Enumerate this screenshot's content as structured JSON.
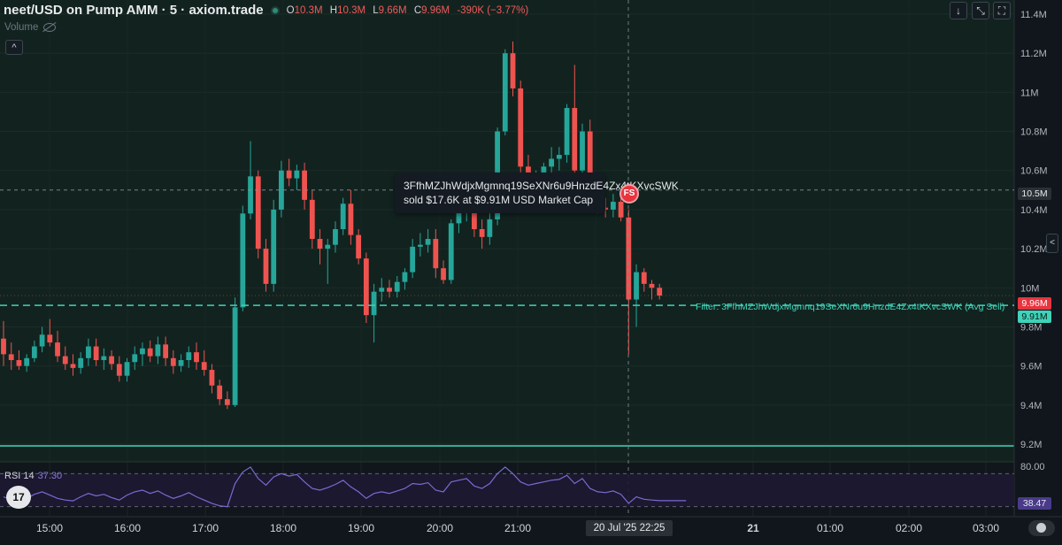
{
  "header": {
    "title": "neet/USD on Pump AMM · 5 · axiom.trade",
    "ohlc": [
      {
        "key": "O",
        "value": "10.3M"
      },
      {
        "key": "H",
        "value": "10.3M"
      },
      {
        "key": "L",
        "value": "9.66M"
      },
      {
        "key": "C",
        "value": "9.96M"
      }
    ],
    "change": "-390K (−3.77%)",
    "volume_label": "Volume",
    "collapse_icon": "chevron-up-icon",
    "buttons": [
      {
        "name": "arrow-down-icon",
        "glyph": "↓"
      },
      {
        "name": "collapse-arrows-icon",
        "glyph": "⤡"
      },
      {
        "name": "fullscreen-icon",
        "glyph": "⛶"
      }
    ]
  },
  "tooltip": {
    "line1": "3FfhMZJhWdjxMgmnq19SeXNr6u9HnzdE4Zx4tKXvcSWK",
    "line2": "sold $17.6K at $9.91M USD Market Cap"
  },
  "marker_badge": "FS",
  "filter_label": "Filter: 3FfhMZJhWdjxMgmnq19SeXNr6u9HnzdE4Zx4tKXvcSWK (Avg Sell)",
  "price_tags": {
    "crosshair": "10.5M",
    "last": "9.96M",
    "avg_sell": "9.91M",
    "rsi_value": "38.47"
  },
  "rsi": {
    "label": "RSI 14",
    "value": "37.30",
    "axis_top": "80.00"
  },
  "footer": {
    "date_tag": "20 Jul '25   22:25",
    "logo_text": "17"
  },
  "colors": {
    "up": "#26a69a",
    "down": "#ef5350",
    "avg_sell_line": "#3fd3b8",
    "rsi_line": "#7b6ad0",
    "background": "#10161b"
  },
  "chart_data": {
    "type": "candlestick",
    "title": "neet/USD on Pump AMM · 5 · axiom.trade",
    "yunit": "USD market cap (M)",
    "ylim": [
      9.2,
      11.4
    ],
    "y_ticks": [
      "11.4M",
      "11.2M",
      "11M",
      "10.8M",
      "10.6M",
      "10.4M",
      "10.2M",
      "10M",
      "9.8M",
      "9.6M",
      "9.4M",
      "9.2M"
    ],
    "x_ticks": [
      "15:00",
      "16:00",
      "17:00",
      "18:00",
      "19:00",
      "20:00",
      "21:00",
      "22:00",
      "21",
      "01:00",
      "02:00",
      "03:00"
    ],
    "crosshair_time": "22:25",
    "crosshair_value": 10.5,
    "avg_sell_value": 9.91,
    "last_close": 9.96,
    "candles": [
      {
        "o": 9.74,
        "h": 9.83,
        "l": 9.6,
        "c": 9.66
      },
      {
        "o": 9.66,
        "h": 9.72,
        "l": 9.58,
        "c": 9.63
      },
      {
        "o": 9.63,
        "h": 9.68,
        "l": 9.58,
        "c": 9.6
      },
      {
        "o": 9.6,
        "h": 9.66,
        "l": 9.57,
        "c": 9.64
      },
      {
        "o": 9.64,
        "h": 9.73,
        "l": 9.62,
        "c": 9.7
      },
      {
        "o": 9.7,
        "h": 9.8,
        "l": 9.67,
        "c": 9.76
      },
      {
        "o": 9.76,
        "h": 9.84,
        "l": 9.7,
        "c": 9.72
      },
      {
        "o": 9.72,
        "h": 9.78,
        "l": 9.62,
        "c": 9.65
      },
      {
        "o": 9.65,
        "h": 9.7,
        "l": 9.58,
        "c": 9.61
      },
      {
        "o": 9.61,
        "h": 9.66,
        "l": 9.55,
        "c": 9.59
      },
      {
        "o": 9.59,
        "h": 9.67,
        "l": 9.56,
        "c": 9.64
      },
      {
        "o": 9.64,
        "h": 9.74,
        "l": 9.6,
        "c": 9.7
      },
      {
        "o": 9.7,
        "h": 9.74,
        "l": 9.6,
        "c": 9.63
      },
      {
        "o": 9.63,
        "h": 9.69,
        "l": 9.58,
        "c": 9.65
      },
      {
        "o": 9.65,
        "h": 9.68,
        "l": 9.58,
        "c": 9.61
      },
      {
        "o": 9.61,
        "h": 9.65,
        "l": 9.52,
        "c": 9.55
      },
      {
        "o": 9.55,
        "h": 9.64,
        "l": 9.52,
        "c": 9.62
      },
      {
        "o": 9.62,
        "h": 9.7,
        "l": 9.58,
        "c": 9.66
      },
      {
        "o": 9.66,
        "h": 9.72,
        "l": 9.6,
        "c": 9.69
      },
      {
        "o": 9.69,
        "h": 9.73,
        "l": 9.62,
        "c": 9.65
      },
      {
        "o": 9.65,
        "h": 9.75,
        "l": 9.61,
        "c": 9.71
      },
      {
        "o": 9.71,
        "h": 9.75,
        "l": 9.6,
        "c": 9.64
      },
      {
        "o": 9.64,
        "h": 9.68,
        "l": 9.56,
        "c": 9.6
      },
      {
        "o": 9.6,
        "h": 9.66,
        "l": 9.57,
        "c": 9.63
      },
      {
        "o": 9.63,
        "h": 9.7,
        "l": 9.59,
        "c": 9.67
      },
      {
        "o": 9.67,
        "h": 9.72,
        "l": 9.58,
        "c": 9.62
      },
      {
        "o": 9.62,
        "h": 9.68,
        "l": 9.55,
        "c": 9.58
      },
      {
        "o": 9.58,
        "h": 9.61,
        "l": 9.46,
        "c": 9.5
      },
      {
        "o": 9.5,
        "h": 9.53,
        "l": 9.4,
        "c": 9.43
      },
      {
        "o": 9.43,
        "h": 9.47,
        "l": 9.38,
        "c": 9.4
      },
      {
        "o": 9.4,
        "h": 9.95,
        "l": 9.39,
        "c": 9.9
      },
      {
        "o": 9.9,
        "h": 10.42,
        "l": 9.88,
        "c": 10.38
      },
      {
        "o": 10.38,
        "h": 10.75,
        "l": 10.35,
        "c": 10.57
      },
      {
        "o": 10.57,
        "h": 10.6,
        "l": 10.15,
        "c": 10.2
      },
      {
        "o": 10.2,
        "h": 10.25,
        "l": 9.98,
        "c": 10.02
      },
      {
        "o": 10.02,
        "h": 10.45,
        "l": 9.98,
        "c": 10.4
      },
      {
        "o": 10.4,
        "h": 10.65,
        "l": 10.36,
        "c": 10.6
      },
      {
        "o": 10.6,
        "h": 10.66,
        "l": 10.52,
        "c": 10.56
      },
      {
        "o": 10.56,
        "h": 10.63,
        "l": 10.5,
        "c": 10.6
      },
      {
        "o": 10.6,
        "h": 10.64,
        "l": 10.4,
        "c": 10.45
      },
      {
        "o": 10.45,
        "h": 10.5,
        "l": 10.2,
        "c": 10.25
      },
      {
        "o": 10.25,
        "h": 10.3,
        "l": 10.12,
        "c": 10.2
      },
      {
        "o": 10.2,
        "h": 10.25,
        "l": 10.02,
        "c": 10.22
      },
      {
        "o": 10.22,
        "h": 10.34,
        "l": 10.18,
        "c": 10.3
      },
      {
        "o": 10.3,
        "h": 10.46,
        "l": 10.27,
        "c": 10.43
      },
      {
        "o": 10.43,
        "h": 10.5,
        "l": 10.22,
        "c": 10.27
      },
      {
        "o": 10.27,
        "h": 10.3,
        "l": 10.12,
        "c": 10.15
      },
      {
        "o": 10.15,
        "h": 10.18,
        "l": 9.82,
        "c": 9.86
      },
      {
        "o": 9.86,
        "h": 10.02,
        "l": 9.72,
        "c": 9.98
      },
      {
        "o": 9.98,
        "h": 10.05,
        "l": 9.93,
        "c": 10.0
      },
      {
        "o": 10.0,
        "h": 10.04,
        "l": 9.95,
        "c": 9.98
      },
      {
        "o": 9.98,
        "h": 10.06,
        "l": 9.95,
        "c": 10.03
      },
      {
        "o": 10.03,
        "h": 10.1,
        "l": 9.99,
        "c": 10.08
      },
      {
        "o": 10.08,
        "h": 10.25,
        "l": 10.05,
        "c": 10.21
      },
      {
        "o": 10.21,
        "h": 10.28,
        "l": 10.16,
        "c": 10.22
      },
      {
        "o": 10.22,
        "h": 10.3,
        "l": 10.18,
        "c": 10.25
      },
      {
        "o": 10.25,
        "h": 10.3,
        "l": 10.05,
        "c": 10.1
      },
      {
        "o": 10.1,
        "h": 10.14,
        "l": 10.02,
        "c": 10.04
      },
      {
        "o": 10.04,
        "h": 10.35,
        "l": 10.02,
        "c": 10.33
      },
      {
        "o": 10.33,
        "h": 10.44,
        "l": 10.28,
        "c": 10.4
      },
      {
        "o": 10.4,
        "h": 10.48,
        "l": 10.34,
        "c": 10.45
      },
      {
        "o": 10.45,
        "h": 10.52,
        "l": 10.26,
        "c": 10.3
      },
      {
        "o": 10.3,
        "h": 10.35,
        "l": 10.2,
        "c": 10.26
      },
      {
        "o": 10.26,
        "h": 10.4,
        "l": 10.22,
        "c": 10.35
      },
      {
        "o": 10.35,
        "h": 10.82,
        "l": 10.32,
        "c": 10.8
      },
      {
        "o": 10.8,
        "h": 11.22,
        "l": 10.78,
        "c": 11.2
      },
      {
        "o": 11.2,
        "h": 11.26,
        "l": 10.98,
        "c": 11.02
      },
      {
        "o": 11.02,
        "h": 11.06,
        "l": 10.58,
        "c": 10.62
      },
      {
        "o": 10.62,
        "h": 10.68,
        "l": 10.5,
        "c": 10.55
      },
      {
        "o": 10.55,
        "h": 10.6,
        "l": 10.48,
        "c": 10.58
      },
      {
        "o": 10.58,
        "h": 10.64,
        "l": 10.54,
        "c": 10.62
      },
      {
        "o": 10.62,
        "h": 10.72,
        "l": 10.58,
        "c": 10.66
      },
      {
        "o": 10.66,
        "h": 10.72,
        "l": 10.6,
        "c": 10.68
      },
      {
        "o": 10.68,
        "h": 10.94,
        "l": 10.64,
        "c": 10.92
      },
      {
        "o": 10.92,
        "h": 11.14,
        "l": 10.55,
        "c": 10.6
      },
      {
        "o": 10.6,
        "h": 10.84,
        "l": 10.56,
        "c": 10.8
      },
      {
        "o": 10.8,
        "h": 10.86,
        "l": 10.44,
        "c": 10.48
      },
      {
        "o": 10.48,
        "h": 10.52,
        "l": 10.38,
        "c": 10.41
      },
      {
        "o": 10.41,
        "h": 10.46,
        "l": 10.36,
        "c": 10.4
      },
      {
        "o": 10.4,
        "h": 10.48,
        "l": 10.36,
        "c": 10.44
      },
      {
        "o": 10.44,
        "h": 10.5,
        "l": 10.34,
        "c": 10.36
      },
      {
        "o": 10.36,
        "h": 10.4,
        "l": 9.66,
        "c": 9.94
      },
      {
        "o": 9.94,
        "h": 10.12,
        "l": 9.8,
        "c": 10.08
      },
      {
        "o": 10.08,
        "h": 10.1,
        "l": 9.98,
        "c": 10.02
      },
      {
        "o": 10.02,
        "h": 10.04,
        "l": 9.94,
        "c": 10.0
      },
      {
        "o": 10.0,
        "h": 10.02,
        "l": 9.94,
        "c": 9.96
      }
    ],
    "rsi_series": {
      "name": "RSI 14",
      "ylim": [
        20,
        80
      ],
      "upper_band": 70,
      "lower_band": 30,
      "values": [
        42,
        38,
        36,
        40,
        45,
        48,
        44,
        40,
        38,
        37,
        42,
        46,
        43,
        45,
        41,
        38,
        44,
        48,
        50,
        46,
        49,
        44,
        40,
        43,
        47,
        42,
        38,
        34,
        31,
        30,
        58,
        72,
        78,
        64,
        56,
        66,
        70,
        67,
        69,
        60,
        52,
        50,
        53,
        57,
        62,
        54,
        48,
        40,
        46,
        48,
        46,
        49,
        52,
        58,
        57,
        59,
        50,
        48,
        60,
        62,
        64,
        55,
        52,
        58,
        70,
        78,
        70,
        60,
        56,
        58,
        60,
        62,
        63,
        68,
        58,
        64,
        52,
        48,
        47,
        49,
        45,
        34,
        42,
        39,
        38,
        37.3
      ]
    }
  }
}
